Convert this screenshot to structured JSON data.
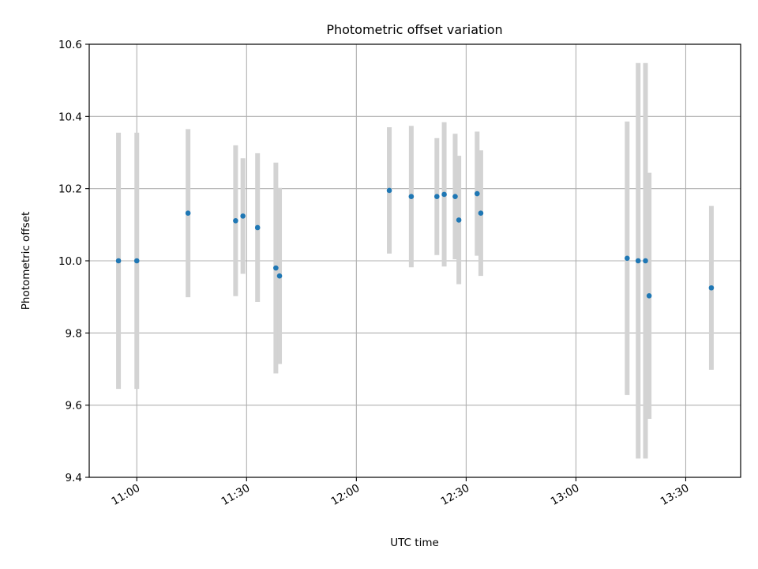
{
  "chart_data": {
    "type": "scatter",
    "title": "Photometric offset variation",
    "xlabel": "UTC time",
    "ylabel": "Photometric offset",
    "xlim": [
      "10:47",
      "13:45"
    ],
    "ylim": [
      9.4,
      10.6
    ],
    "grid": true,
    "x_ticks": [
      "11:00",
      "11:30",
      "12:00",
      "12:30",
      "13:00",
      "13:30"
    ],
    "y_ticks": [
      "9.4",
      "9.6",
      "9.8",
      "10.0",
      "10.2",
      "10.4",
      "10.6"
    ],
    "series": [
      {
        "marker_color": "#1f77b4",
        "errorbar_color": "#d3d3d3",
        "points": [
          {
            "x": "10:55",
            "y": 10.0,
            "err": 0.355
          },
          {
            "x": "11:00",
            "y": 10.0,
            "err": 0.355
          },
          {
            "x": "11:14",
            "y": 10.132,
            "err": 0.233
          },
          {
            "x": "11:27",
            "y": 10.111,
            "err": 0.209
          },
          {
            "x": "11:29",
            "y": 10.124,
            "err": 0.16
          },
          {
            "x": "11:33",
            "y": 10.092,
            "err": 0.206
          },
          {
            "x": "11:38",
            "y": 9.98,
            "err": 0.292
          },
          {
            "x": "11:39",
            "y": 9.958,
            "err": 0.244
          },
          {
            "x": "12:09",
            "y": 10.195,
            "err": 0.175
          },
          {
            "x": "12:15",
            "y": 10.178,
            "err": 0.196
          },
          {
            "x": "12:22",
            "y": 10.178,
            "err": 0.162
          },
          {
            "x": "12:24",
            "y": 10.184,
            "err": 0.2
          },
          {
            "x": "12:27",
            "y": 10.178,
            "err": 0.174
          },
          {
            "x": "12:28",
            "y": 10.113,
            "err": 0.178
          },
          {
            "x": "12:33",
            "y": 10.186,
            "err": 0.172
          },
          {
            "x": "12:34",
            "y": 10.132,
            "err": 0.174
          },
          {
            "x": "13:14",
            "y": 10.007,
            "err": 0.379
          },
          {
            "x": "13:17",
            "y": 10.0,
            "err": 0.548
          },
          {
            "x": "13:19",
            "y": 10.0,
            "err": 0.548
          },
          {
            "x": "13:20",
            "y": 9.903,
            "err": 0.341
          },
          {
            "x": "13:37",
            "y": 9.925,
            "err": 0.227
          }
        ]
      }
    ]
  }
}
